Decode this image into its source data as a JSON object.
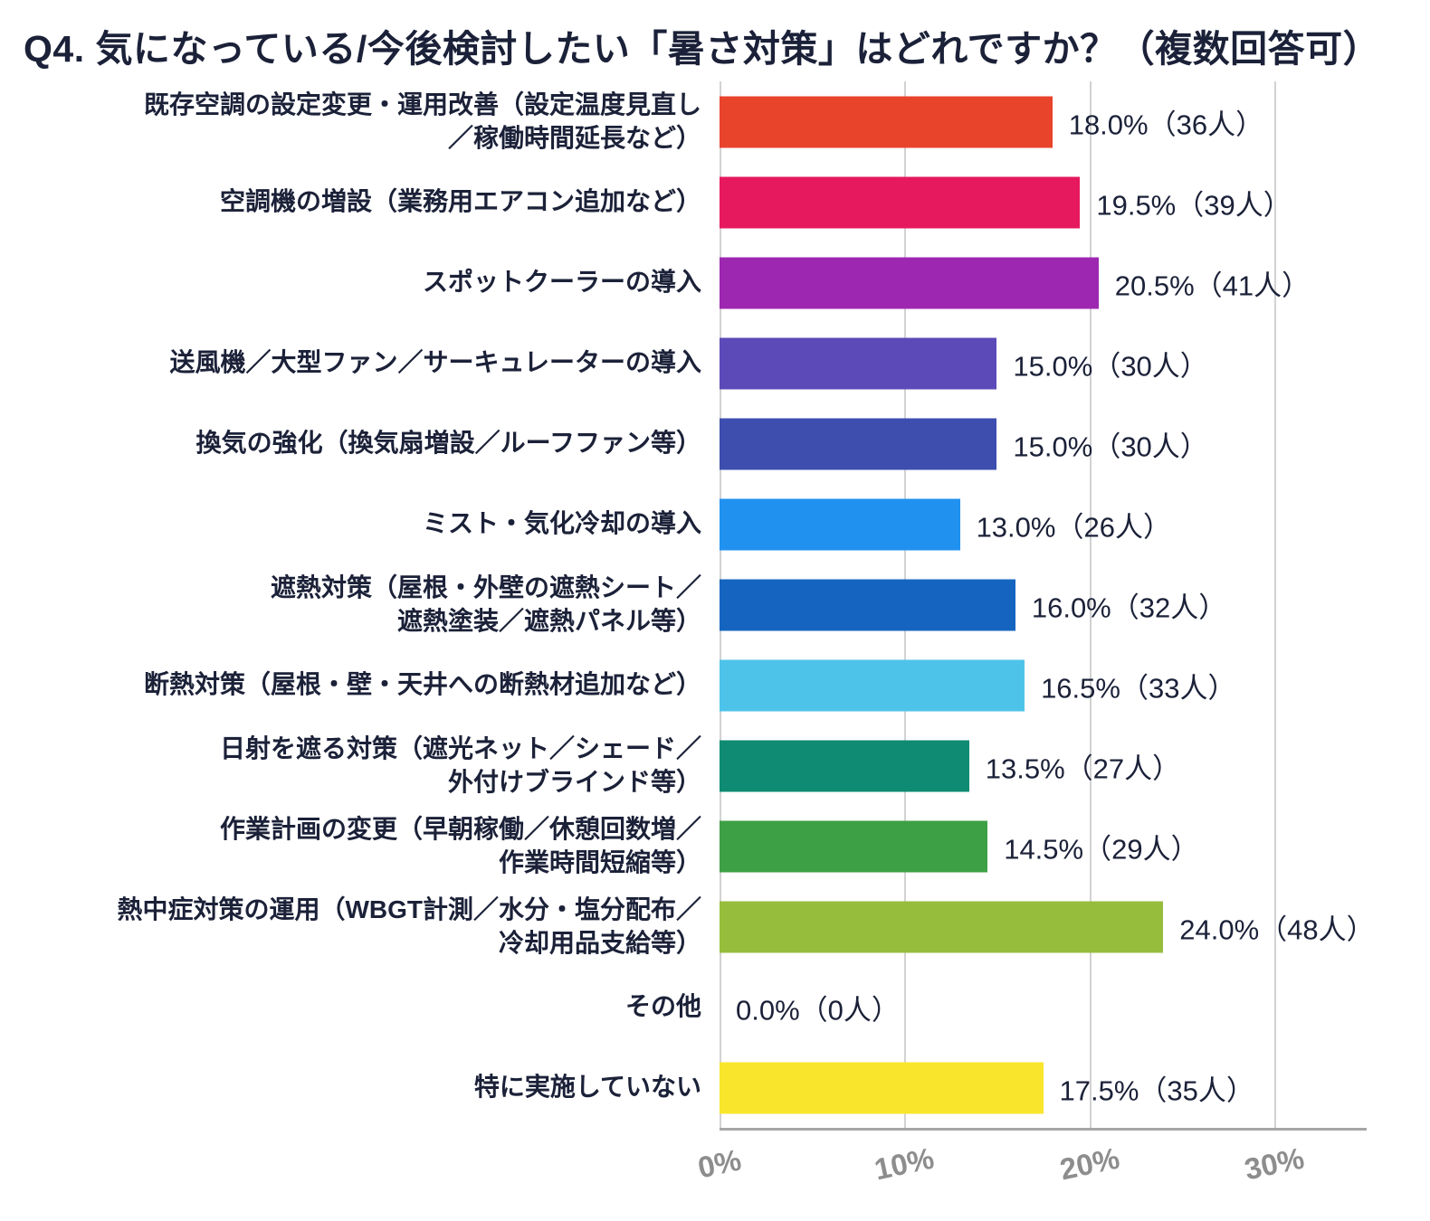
{
  "chart_data": {
    "type": "bar",
    "orientation": "horizontal",
    "title": "Q4. 気になっている/今後検討したい「暑さ対策」はどれですか？（複数回答可）",
    "xlabel": "",
    "ylabel": "",
    "xlim": [
      0,
      35
    ],
    "grid": true,
    "legend": false,
    "text_color": "#1b2138",
    "axis_color": "#a6a6a6",
    "grid_color": "#d2d2d2",
    "tick_label_color": "#8d8d8d",
    "x_ticks": [
      {
        "value": 0,
        "label": "0%"
      },
      {
        "value": 10,
        "label": "10%"
      },
      {
        "value": 20,
        "label": "20%"
      },
      {
        "value": 30,
        "label": "30%"
      }
    ],
    "bars": [
      {
        "category": "既存空調の設定変更・運用改善（設定温度見直し\n／稼働時間延長など）",
        "value": 18.0,
        "count": 36,
        "value_label": "18.0%（36人）",
        "color": "#E8432B"
      },
      {
        "category": "空調機の増設（業務用エアコン追加など）",
        "value": 19.5,
        "count": 39,
        "value_label": "19.5%（39人）",
        "color": "#E6195E"
      },
      {
        "category": "スポットクーラーの導入",
        "value": 20.5,
        "count": 41,
        "value_label": "20.5%（41人）",
        "color": "#9D27B0"
      },
      {
        "category": "送風機／大型ファン／サーキュレーターの導入",
        "value": 15.0,
        "count": 30,
        "value_label": "15.0%（30人）",
        "color": "#5C4AB8"
      },
      {
        "category": "換気の強化（換気扇増設／ルーフファン等）",
        "value": 15.0,
        "count": 30,
        "value_label": "15.0%（30人）",
        "color": "#3D4EAE"
      },
      {
        "category": "ミスト・気化冷却の導入",
        "value": 13.0,
        "count": 26,
        "value_label": "13.0%（26人）",
        "color": "#2191F0"
      },
      {
        "category": "遮熱対策（屋根・外壁の遮熱シート／\n遮熱塗装／遮熱パネル等）",
        "value": 16.0,
        "count": 32,
        "value_label": "16.0%（32人）",
        "color": "#1565C0"
      },
      {
        "category": "断熱対策（屋根・壁・天井への断熱材追加など）",
        "value": 16.5,
        "count": 33,
        "value_label": "16.5%（33人）",
        "color": "#4EC3EA"
      },
      {
        "category": "日射を遮る対策（遮光ネット／シェード／\n外付けブラインド等）",
        "value": 13.5,
        "count": 27,
        "value_label": "13.5%（27人）",
        "color": "#0E8B72"
      },
      {
        "category": "作業計画の変更（早朝稼働／休憩回数増／\n作業時間短縮等）",
        "value": 14.5,
        "count": 29,
        "value_label": "14.5%（29人）",
        "color": "#3EA044"
      },
      {
        "category": "熱中症対策の運用（WBGT計測／水分・塩分配布／\n冷却用品支給等）",
        "value": 24.0,
        "count": 48,
        "value_label": "24.0%（48人）",
        "color": "#97BD3D"
      },
      {
        "category": "その他",
        "value": 0.0,
        "count": 0,
        "value_label": "0.0%（0人）",
        "color": null
      },
      {
        "category": "特に実施していない",
        "value": 17.5,
        "count": 35,
        "value_label": "17.5%（35人）",
        "color": "#F9E52C"
      }
    ]
  }
}
